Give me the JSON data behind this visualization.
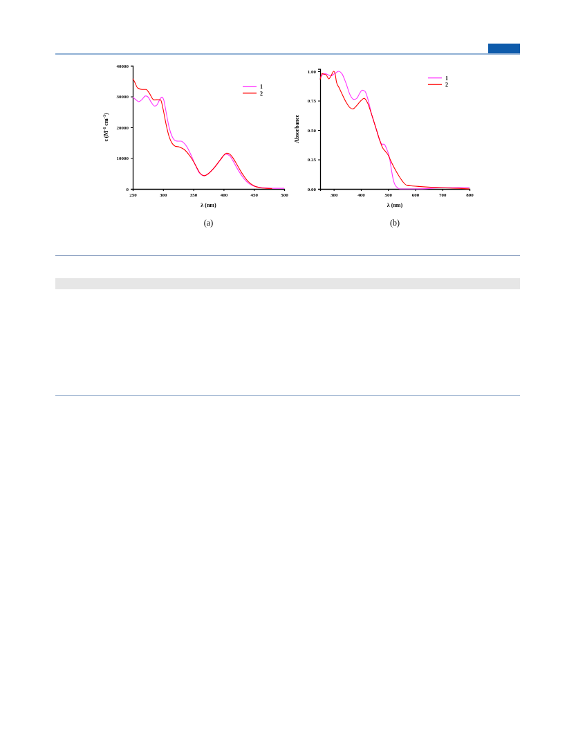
{
  "chart_data": [
    {
      "type": "line",
      "xlabel": "λ (nm)",
      "ylabel": "ε (M$^{-1}$ cm$^{-1}$)",
      "xlim": [
        250,
        500
      ],
      "xticks": [
        250,
        300,
        350,
        400,
        450,
        500
      ],
      "ylim": [
        0,
        40000
      ],
      "yticks": [
        0,
        10000,
        20000,
        30000,
        40000
      ],
      "grid": false,
      "legend": "top right",
      "marker": "none",
      "line_style": "solid",
      "annotations": [
        "(a)"
      ],
      "series": [
        {
          "name": "1",
          "color": "#ff33ff",
          "x": [
            250,
            255,
            260,
            265,
            271,
            275,
            280,
            286,
            290,
            295,
            298,
            301,
            305,
            310,
            315,
            320,
            325,
            330,
            335,
            340,
            345,
            350,
            355,
            360,
            368,
            375,
            385,
            395,
            403,
            410,
            415,
            420,
            430,
            440,
            450,
            460,
            470,
            480,
            500
          ],
          "values": [
            29800,
            29000,
            28300,
            29000,
            30200,
            29900,
            28300,
            26900,
            27300,
            29200,
            29800,
            29000,
            25000,
            20000,
            17000,
            15700,
            15500,
            15500,
            14800,
            13500,
            11500,
            9300,
            7000,
            5200,
            4300,
            5000,
            7000,
            9500,
            11300,
            10800,
            9300,
            7500,
            4300,
            2000,
            900,
            500,
            300,
            200,
            200
          ]
        },
        {
          "name": "2",
          "color": "#ff0000",
          "x": [
            250,
            253,
            258,
            265,
            272,
            277,
            285,
            293,
            296,
            300,
            305,
            310,
            315,
            320,
            327,
            335,
            345,
            350,
            355,
            360,
            368,
            375,
            385,
            395,
            405,
            410,
            415,
            420,
            430,
            440,
            450,
            460,
            470,
            480
          ],
          "values": [
            35800,
            34800,
            32800,
            32300,
            32300,
            31200,
            28900,
            29000,
            28900,
            26000,
            21000,
            17000,
            14800,
            13900,
            13600,
            12800,
            10500,
            9000,
            7200,
            5400,
            4300,
            5000,
            7000,
            9600,
            11600,
            11300,
            10200,
            8600,
            5200,
            2500,
            1000,
            400,
            200,
            100
          ]
        }
      ]
    },
    {
      "type": "line",
      "xlabel": "λ (nm)",
      "ylabel": "Absorbance",
      "xlim": [
        250,
        800
      ],
      "xticks": [
        300,
        400,
        500,
        600,
        700,
        800
      ],
      "ylim": [
        0,
        1.02
      ],
      "yticks": [
        {
          "value": 0,
          "label": "0.00"
        },
        {
          "value": 0.25,
          "label": "0.25"
        },
        {
          "value": 0.5,
          "label": "0.50"
        },
        {
          "value": 0.75,
          "label": "0.75"
        },
        {
          "value": 1,
          "label": "1.00"
        }
      ],
      "grid": false,
      "legend": "top right",
      "marker": "none",
      "line_style": "solid",
      "annotations": [
        "(b)"
      ],
      "series": [
        {
          "name": "1",
          "color": "#ff33ff",
          "x": [
            250,
            258,
            265,
            275,
            290,
            300,
            310,
            318,
            330,
            345,
            360,
            375,
            385,
            395,
            405,
            415,
            425,
            440,
            455,
            470,
            478,
            485,
            495,
            505,
            512,
            520,
            530,
            545,
            600,
            700,
            800
          ],
          "values": [
            0.94,
            0.97,
            0.98,
            0.975,
            0.96,
            0.975,
            0.99,
            1.0,
            0.98,
            0.9,
            0.8,
            0.76,
            0.77,
            0.81,
            0.84,
            0.83,
            0.77,
            0.63,
            0.52,
            0.41,
            0.38,
            0.38,
            0.34,
            0.27,
            0.17,
            0.07,
            0.02,
            0.0,
            0.0,
            0.01,
            0.015
          ]
        },
        {
          "name": "2",
          "color": "#ff0000",
          "x": [
            250,
            257,
            265,
            272,
            282,
            290,
            300,
            305,
            310,
            320,
            330,
            345,
            360,
            370,
            385,
            400,
            412,
            425,
            440,
            455,
            470,
            480,
            490,
            500,
            510,
            525,
            540,
            555,
            570,
            590,
            620,
            700,
            760,
            800
          ],
          "values": [
            0.93,
            0.98,
            0.975,
            0.97,
            0.935,
            0.96,
            1.0,
            0.98,
            0.91,
            0.86,
            0.81,
            0.74,
            0.69,
            0.68,
            0.71,
            0.75,
            0.77,
            0.73,
            0.63,
            0.52,
            0.41,
            0.35,
            0.32,
            0.29,
            0.24,
            0.17,
            0.11,
            0.06,
            0.03,
            0.025,
            0.02,
            0.01,
            0.005,
            0.0
          ]
        }
      ]
    }
  ]
}
